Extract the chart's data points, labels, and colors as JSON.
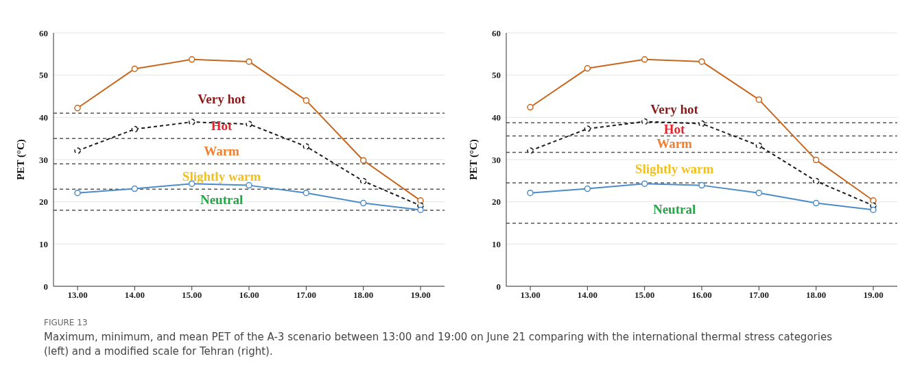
{
  "chart_data": [
    {
      "type": "line",
      "ylabel": "PET (°C)",
      "categories": [
        "13.00",
        "14.00",
        "15.00",
        "16.00",
        "17.00",
        "18.00",
        "19.00"
      ],
      "series": [
        {
          "color": "#c8651b",
          "values": [
            42.2,
            51.5,
            53.7,
            53.2,
            44.0,
            29.8,
            20.3
          ]
        },
        {
          "color": "#1a1a1a",
          "line_style": "dashed",
          "values": [
            32.1,
            37.2,
            38.9,
            38.4,
            33.1,
            24.9,
            19.1
          ]
        },
        {
          "color": "#4a8bc8",
          "values": [
            22.1,
            23.1,
            24.3,
            23.9,
            22.1,
            19.7,
            18.1
          ]
        }
      ],
      "ylim": [
        0,
        60
      ],
      "yticks": [
        0,
        10,
        20,
        30,
        40,
        50,
        60
      ],
      "grid": "y",
      "marker": "circle",
      "line_style": "solid",
      "ref_lines": [
        {
          "axis": "y",
          "value": 41,
          "color": "#555555",
          "line_style": "dashed"
        },
        {
          "axis": "y",
          "value": 35,
          "color": "#555555",
          "line_style": "dashed"
        },
        {
          "axis": "y",
          "value": 29,
          "color": "#555555",
          "line_style": "dashed"
        },
        {
          "axis": "y",
          "value": 23,
          "color": "#555555",
          "line_style": "dashed"
        },
        {
          "axis": "y",
          "value": 18,
          "color": "#555555",
          "line_style": "dashed"
        }
      ],
      "annotations": [
        "Very hot",
        "Hot",
        "Warm",
        "Slightly warm",
        "Neutral",
        "FIGURE 13",
        "Maximum, minimum, and mean PET of the A-3 scenario between 13:00 and 19:00 on June 21 comparing with the international thermal stress categories (left) and a modified scale for Tehran (right)."
      ]
    },
    {
      "type": "line",
      "ylabel": "PET (°C)",
      "categories": [
        "13.00",
        "14.00",
        "15.00",
        "16.00",
        "17.00",
        "18.00",
        "19.00"
      ],
      "series": [
        {
          "color": "#c8651b",
          "values": [
            42.4,
            51.6,
            53.7,
            53.2,
            44.2,
            29.9,
            20.3
          ]
        },
        {
          "color": "#1a1a1a",
          "line_style": "dashed",
          "values": [
            32.1,
            37.3,
            39.0,
            38.5,
            33.3,
            24.9,
            19.1
          ]
        },
        {
          "color": "#4a8bc8",
          "values": [
            22.1,
            23.1,
            24.3,
            23.9,
            22.1,
            19.7,
            18.1
          ]
        }
      ],
      "ylim": [
        0,
        60
      ],
      "yticks": [
        0,
        10,
        20,
        30,
        40,
        50,
        60
      ],
      "grid": "y",
      "marker": "circle",
      "line_style": "solid",
      "ref_lines": [
        {
          "axis": "y",
          "value": 38.7,
          "color": "#555555",
          "line_style": "dashed"
        },
        {
          "axis": "y",
          "value": 35.6,
          "color": "#555555",
          "line_style": "dashed"
        },
        {
          "axis": "y",
          "value": 31.7,
          "color": "#555555",
          "line_style": "dashed"
        },
        {
          "axis": "y",
          "value": 24.5,
          "color": "#555555",
          "line_style": "dashed"
        },
        {
          "axis": "y",
          "value": 14.9,
          "color": "#555555",
          "line_style": "dashed"
        }
      ],
      "annotations": [
        "Very hot",
        "Hot",
        "Warm",
        "Slightly warm",
        "Neutral"
      ]
    }
  ]
}
